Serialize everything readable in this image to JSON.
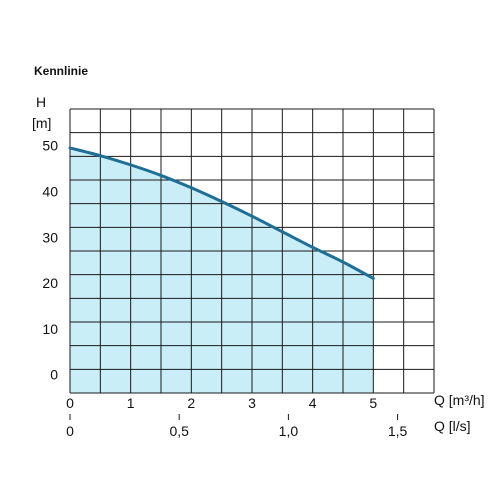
{
  "chart_data": {
    "type": "area",
    "title": "Kennlinie",
    "ylabel": "H",
    "yunit": "[m]",
    "xlabel": "Q [m³/h]",
    "x2label": "Q [l/s]",
    "xlim": [
      0,
      6
    ],
    "ylim": [
      -4,
      58
    ],
    "yticks": [
      0,
      10,
      20,
      30,
      40,
      50
    ],
    "xticks": [
      0,
      1,
      2,
      3,
      4,
      5
    ],
    "x2ticks": [
      {
        "value": 0,
        "label": "0"
      },
      {
        "value": 0.5,
        "label": "0,5"
      },
      {
        "value": 1.0,
        "label": "1,0"
      },
      {
        "value": 1.5,
        "label": "1,5"
      }
    ],
    "grid": true,
    "colors": {
      "fill": "#c9eef8",
      "line": "#1f6e96",
      "grid": "#1a1a1a"
    },
    "series": [
      {
        "x": [
          0,
          0.5,
          1,
          1.5,
          2,
          2.5,
          3,
          3.5,
          4,
          4.5,
          5
        ],
        "values": [
          49.5,
          47.8,
          45.8,
          43.5,
          40.8,
          37.8,
          34.6,
          31.2,
          27.8,
          24.6,
          21.0
        ]
      }
    ]
  }
}
